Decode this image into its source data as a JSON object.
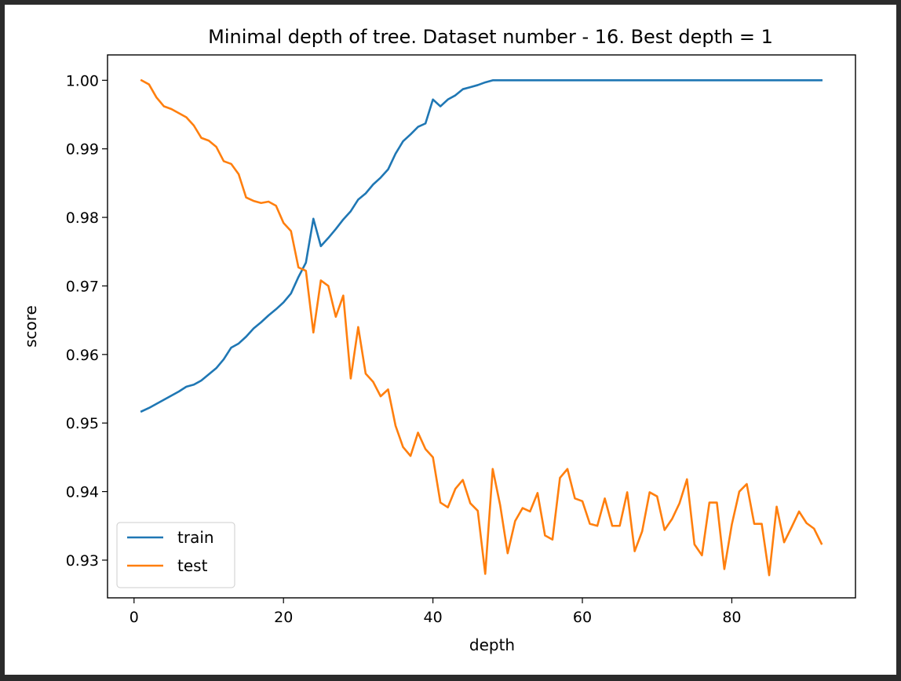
{
  "chart_data": {
    "type": "line",
    "title": "Minimal depth of tree. Dataset number - 16. Best depth = 1",
    "xlabel": "depth",
    "ylabel": "score",
    "xlim": [
      -3.55,
      96.55
    ],
    "ylim": [
      0.9245,
      1.0037
    ],
    "xticks": [
      0,
      20,
      40,
      60,
      80
    ],
    "yticks": [
      0.93,
      0.94,
      0.95,
      0.96,
      0.97,
      0.98,
      0.99,
      1.0
    ],
    "ytick_labels": [
      "0.93",
      "0.94",
      "0.95",
      "0.96",
      "0.97",
      "0.98",
      "0.99",
      "1.00"
    ],
    "grid": false,
    "legend": "lower-left",
    "series": [
      {
        "name": "train",
        "color": "#1f77b4",
        "x": [
          1,
          2,
          3,
          4,
          5,
          6,
          7,
          8,
          9,
          10,
          11,
          12,
          13,
          14,
          15,
          16,
          17,
          18,
          19,
          20,
          21,
          22,
          23,
          24,
          25,
          26,
          27,
          28,
          29,
          30,
          31,
          32,
          33,
          34,
          35,
          36,
          37,
          38,
          39,
          40,
          41,
          42,
          43,
          44,
          45,
          46,
          47,
          48,
          49,
          50,
          51,
          52,
          53,
          54,
          55,
          56,
          57,
          58,
          59,
          60,
          61,
          62,
          63,
          64,
          65,
          66,
          67,
          68,
          69,
          70,
          71,
          72,
          73,
          74,
          75,
          76,
          77,
          78,
          79,
          80,
          81,
          82,
          83,
          84,
          85,
          86,
          87,
          88,
          89,
          90,
          91,
          92
        ],
        "values": [
          0.9517,
          0.9522,
          0.9528,
          0.9534,
          0.954,
          0.9546,
          0.9553,
          0.9556,
          0.9562,
          0.9571,
          0.958,
          0.9593,
          0.961,
          0.9616,
          0.9626,
          0.9638,
          0.9647,
          0.9657,
          0.9666,
          0.9676,
          0.9689,
          0.9713,
          0.9734,
          0.9798,
          0.9758,
          0.977,
          0.9783,
          0.9797,
          0.9809,
          0.9826,
          0.9835,
          0.9848,
          0.9858,
          0.987,
          0.9893,
          0.9911,
          0.9921,
          0.9932,
          0.9937,
          0.9972,
          0.9962,
          0.9972,
          0.9978,
          0.9987,
          0.999,
          0.9993,
          0.9997,
          1.0,
          1.0,
          1.0,
          1.0,
          1.0,
          1.0,
          1.0,
          1.0,
          1.0,
          1.0,
          1.0,
          1.0,
          1.0,
          1.0,
          1.0,
          1.0,
          1.0,
          1.0,
          1.0,
          1.0,
          1.0,
          1.0,
          1.0,
          1.0,
          1.0,
          1.0,
          1.0,
          1.0,
          1.0,
          1.0,
          1.0,
          1.0,
          1.0,
          1.0,
          1.0,
          1.0,
          1.0,
          1.0,
          1.0,
          1.0,
          1.0,
          1.0,
          1.0,
          1.0,
          1.0
        ]
      },
      {
        "name": "test",
        "color": "#ff7f0e",
        "x": [
          1,
          2,
          3,
          4,
          5,
          6,
          7,
          8,
          9,
          10,
          11,
          12,
          13,
          14,
          15,
          16,
          17,
          18,
          19,
          20,
          21,
          22,
          23,
          24,
          25,
          26,
          27,
          28,
          29,
          30,
          31,
          32,
          33,
          34,
          35,
          36,
          37,
          38,
          39,
          40,
          41,
          42,
          43,
          44,
          45,
          46,
          47,
          48,
          49,
          50,
          51,
          52,
          53,
          54,
          55,
          56,
          57,
          58,
          59,
          60,
          61,
          62,
          63,
          64,
          65,
          66,
          67,
          68,
          69,
          70,
          71,
          72,
          73,
          74,
          75,
          76,
          77,
          78,
          79,
          80,
          81,
          82,
          83,
          84,
          85,
          86,
          87,
          88,
          89,
          90,
          91,
          92
        ],
        "values": [
          1.0,
          0.9994,
          0.9975,
          0.9962,
          0.9958,
          0.9952,
          0.9946,
          0.9934,
          0.9916,
          0.9912,
          0.9903,
          0.9882,
          0.9878,
          0.9863,
          0.9829,
          0.9824,
          0.9821,
          0.9823,
          0.9817,
          0.9792,
          0.978,
          0.9727,
          0.9722,
          0.9632,
          0.9708,
          0.97,
          0.9655,
          0.9686,
          0.9565,
          0.964,
          0.9572,
          0.956,
          0.9539,
          0.9549,
          0.9496,
          0.9465,
          0.9452,
          0.9486,
          0.9462,
          0.945,
          0.9384,
          0.9377,
          0.9404,
          0.9417,
          0.9383,
          0.9372,
          0.928,
          0.9433,
          0.938,
          0.931,
          0.9357,
          0.9376,
          0.9371,
          0.9398,
          0.9336,
          0.933,
          0.942,
          0.9433,
          0.939,
          0.9386,
          0.9353,
          0.935,
          0.939,
          0.935,
          0.935,
          0.9399,
          0.9313,
          0.9342,
          0.9399,
          0.9393,
          0.9344,
          0.936,
          0.9383,
          0.9418,
          0.9323,
          0.9307,
          0.9384,
          0.9384,
          0.9287,
          0.9352,
          0.94,
          0.9411,
          0.9353,
          0.9353,
          0.9278,
          0.9378,
          0.9326,
          0.9348,
          0.9371,
          0.9354,
          0.9346,
          0.9324
        ]
      }
    ]
  }
}
